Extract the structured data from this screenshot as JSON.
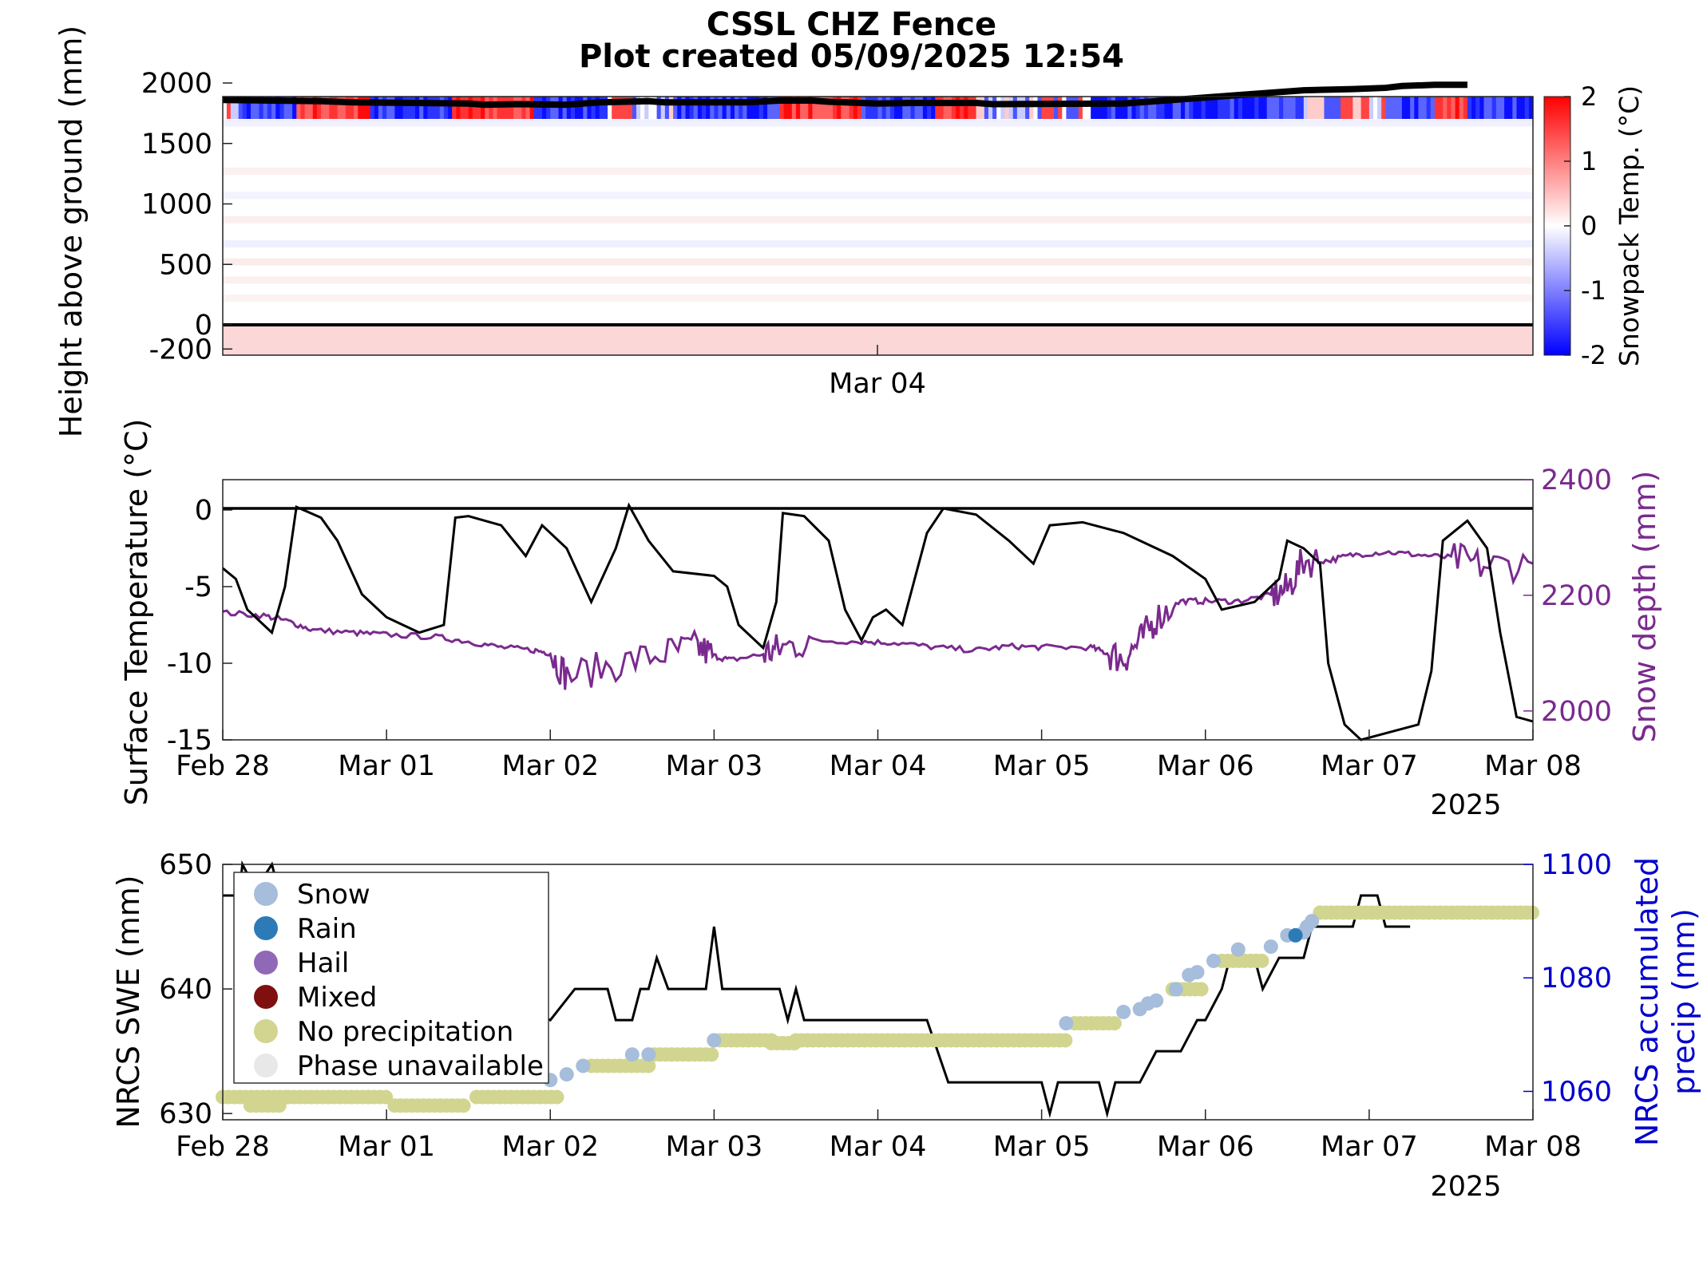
{
  "title_line1": "CSSL CHZ Fence",
  "title_line2": "Plot created 05/09/2025 12:54",
  "chart_data": [
    {
      "type": "heatmap",
      "ylabel": "Height above ground (mm)",
      "yticks": [
        -200,
        0,
        500,
        1000,
        1500,
        2000
      ],
      "xticks": [
        "Mar 04"
      ],
      "colorbar": {
        "label": "Snowpack Temp. (°C)",
        "ticks": [
          -2,
          -1,
          0,
          1,
          2
        ],
        "range": [
          -2,
          2
        ]
      },
      "snow_surface_height": [
        [
          0,
          1860
        ],
        [
          0.3,
          1855
        ],
        [
          0.6,
          1850
        ],
        [
          0.8,
          1840
        ],
        [
          1.5,
          1830
        ],
        [
          1.6,
          1820
        ],
        [
          1.8,
          1825
        ],
        [
          2.1,
          1820
        ],
        [
          2.3,
          1840
        ],
        [
          2.6,
          1850
        ],
        [
          2.7,
          1840
        ],
        [
          3.2,
          1840
        ],
        [
          3.4,
          1855
        ],
        [
          3.6,
          1855
        ],
        [
          3.7,
          1845
        ],
        [
          4.0,
          1830
        ],
        [
          4.2,
          1835
        ],
        [
          4.6,
          1835
        ],
        [
          4.7,
          1825
        ],
        [
          5.5,
          1830
        ],
        [
          5.8,
          1860
        ],
        [
          6.2,
          1900
        ],
        [
          6.6,
          1940
        ],
        [
          6.9,
          1950
        ],
        [
          7.1,
          1960
        ],
        [
          7.2,
          1975
        ],
        [
          7.4,
          1985
        ],
        [
          7.6,
          1985
        ]
      ],
      "ground_level": 0
    },
    {
      "type": "line",
      "ylabel": "Surface Temperature (°C)",
      "ylabel_right": "Snow depth (mm)",
      "ylim": [
        -15,
        2
      ],
      "ylim_right": [
        1950,
        2400
      ],
      "yticks": [
        -15,
        -10,
        -5,
        0
      ],
      "yticks_right": [
        2000,
        2200,
        2400
      ],
      "xticks": [
        "Feb 28",
        "Mar 01",
        "Mar 02",
        "Mar 03",
        "Mar 04",
        "Mar 05",
        "Mar 06",
        "Mar 07",
        "Mar 08"
      ],
      "year_label": "2025",
      "series": [
        {
          "color": "#000000",
          "values": [
            [
              0,
              -3.8
            ],
            [
              0.08,
              -4.5
            ],
            [
              0.15,
              -6.5
            ],
            [
              0.25,
              -7.5
            ],
            [
              0.3,
              -8.0
            ],
            [
              0.38,
              -5.0
            ],
            [
              0.45,
              0.2
            ],
            [
              0.6,
              -0.5
            ],
            [
              0.7,
              -2.0
            ],
            [
              0.85,
              -5.5
            ],
            [
              1.0,
              -7.0
            ],
            [
              1.2,
              -8.0
            ],
            [
              1.35,
              -7.5
            ],
            [
              1.42,
              -0.5
            ],
            [
              1.5,
              -0.4
            ],
            [
              1.7,
              -1.0
            ],
            [
              1.85,
              -3.0
            ],
            [
              1.95,
              -1.0
            ],
            [
              2.1,
              -2.5
            ],
            [
              2.25,
              -6.0
            ],
            [
              2.4,
              -2.5
            ],
            [
              2.48,
              0.3
            ],
            [
              2.6,
              -2.0
            ],
            [
              2.75,
              -4.0
            ],
            [
              3.0,
              -4.3
            ],
            [
              3.08,
              -5.0
            ],
            [
              3.15,
              -7.5
            ],
            [
              3.3,
              -9.0
            ],
            [
              3.38,
              -6.0
            ],
            [
              3.42,
              -0.2
            ],
            [
              3.55,
              -0.4
            ],
            [
              3.7,
              -2.0
            ],
            [
              3.8,
              -6.5
            ],
            [
              3.9,
              -8.5
            ],
            [
              3.97,
              -7.0
            ],
            [
              4.05,
              -6.5
            ],
            [
              4.15,
              -7.5
            ],
            [
              4.3,
              -1.5
            ],
            [
              4.4,
              0.1
            ],
            [
              4.6,
              -0.3
            ],
            [
              4.8,
              -2.0
            ],
            [
              4.95,
              -3.5
            ],
            [
              5.05,
              -1.0
            ],
            [
              5.25,
              -0.8
            ],
            [
              5.5,
              -1.5
            ],
            [
              5.8,
              -3.0
            ],
            [
              6.0,
              -4.5
            ],
            [
              6.1,
              -6.5
            ],
            [
              6.3,
              -6.0
            ],
            [
              6.45,
              -4.5
            ],
            [
              6.5,
              -2.0
            ],
            [
              6.6,
              -2.5
            ],
            [
              6.7,
              -3.5
            ],
            [
              6.75,
              -10.0
            ],
            [
              6.85,
              -14.0
            ],
            [
              6.95,
              -16.0
            ],
            [
              7.3,
              -14.0
            ],
            [
              7.38,
              -10.5
            ],
            [
              7.45,
              -2.0
            ],
            [
              7.6,
              -0.7
            ],
            [
              7.72,
              -2.5
            ],
            [
              7.8,
              -8.0
            ],
            [
              7.9,
              -13.5
            ],
            [
              8.0,
              -13.8
            ]
          ]
        },
        {
          "color": "#7a2a8e",
          "axis": "right",
          "values": [
            [
              0,
              2170
            ],
            [
              0.25,
              2165
            ],
            [
              0.4,
              2155
            ],
            [
              0.55,
              2140
            ],
            [
              0.8,
              2135
            ],
            [
              1.0,
              2132
            ],
            [
              1.3,
              2128
            ],
            [
              1.5,
              2120
            ],
            [
              1.7,
              2110
            ],
            [
              1.9,
              2105
            ],
            [
              2.0,
              2100
            ],
            [
              2.1,
              2060
            ],
            [
              2.4,
              2080
            ],
            [
              2.7,
              2100
            ],
            [
              2.9,
              2110
            ],
            [
              3.0,
              2095
            ],
            [
              3.1,
              2088
            ],
            [
              3.3,
              2098
            ],
            [
              3.4,
              2108
            ],
            [
              3.6,
              2122
            ],
            [
              3.9,
              2120
            ],
            [
              4.1,
              2118
            ],
            [
              4.35,
              2110
            ],
            [
              4.6,
              2105
            ],
            [
              4.8,
              2112
            ],
            [
              5.0,
              2110
            ],
            [
              5.3,
              2110
            ],
            [
              5.4,
              2100
            ],
            [
              5.5,
              2090
            ],
            [
              5.6,
              2120
            ],
            [
              5.7,
              2160
            ],
            [
              5.85,
              2190
            ],
            [
              6.0,
              2190
            ],
            [
              6.2,
              2190
            ],
            [
              6.4,
              2200
            ],
            [
              6.5,
              2210
            ],
            [
              6.6,
              2260
            ],
            [
              6.75,
              2260
            ],
            [
              6.9,
              2270
            ],
            [
              7.1,
              2275
            ],
            [
              7.3,
              2270
            ],
            [
              7.5,
              2265
            ],
            [
              7.7,
              2250
            ],
            [
              8.0,
              2255
            ]
          ]
        }
      ]
    },
    {
      "type": "scatter",
      "ylabel": "NRCS SWE (mm)",
      "ylabel_right": "NRCS accumulated precip (mm)",
      "ylim": [
        629.5,
        650
      ],
      "ylim_right": [
        1055,
        1100
      ],
      "yticks": [
        630,
        640,
        650
      ],
      "yticks_right": [
        1060,
        1080,
        1100
      ],
      "xticks": [
        "Feb 28",
        "Mar 01",
        "Mar 02",
        "Mar 03",
        "Mar 04",
        "Mar 05",
        "Mar 06",
        "Mar 07",
        "Mar 08"
      ],
      "year_label": "2025",
      "legend": [
        {
          "label": "Snow",
          "color": "#a6bddb"
        },
        {
          "label": "Rain",
          "color": "#2c7bb6"
        },
        {
          "label": "Hail",
          "color": "#8f68b8"
        },
        {
          "label": "Mixed",
          "color": "#7f1010"
        },
        {
          "label": "No precipitation",
          "color": "#d2d58f"
        },
        {
          "label": "Phase unavailable",
          "color": "#e8e8e8"
        }
      ],
      "legend_location": "top-left",
      "swe_series": [
        [
          0,
          647.5
        ],
        [
          0.1,
          647.5
        ],
        [
          0.12,
          650
        ],
        [
          0.2,
          648
        ],
        [
          0.3,
          650
        ],
        [
          0.35,
          647.5
        ],
        [
          2.0,
          637.5
        ],
        [
          2.15,
          640
        ],
        [
          2.35,
          640
        ],
        [
          2.4,
          637.5
        ],
        [
          2.5,
          637.5
        ],
        [
          2.55,
          640
        ],
        [
          2.6,
          640
        ],
        [
          2.65,
          642.5
        ],
        [
          2.72,
          640
        ],
        [
          2.95,
          640
        ],
        [
          3.0,
          645
        ],
        [
          3.05,
          640
        ],
        [
          3.4,
          640
        ],
        [
          3.45,
          637.5
        ],
        [
          3.5,
          640
        ],
        [
          3.55,
          637.5
        ],
        [
          4.3,
          637.5
        ],
        [
          4.43,
          632.5
        ],
        [
          4.5,
          632.5
        ],
        [
          5.0,
          632.5
        ],
        [
          5.05,
          630
        ],
        [
          5.1,
          632.5
        ],
        [
          5.35,
          632.5
        ],
        [
          5.4,
          630
        ],
        [
          5.45,
          632.5
        ],
        [
          5.6,
          632.5
        ],
        [
          5.7,
          635
        ],
        [
          5.85,
          635
        ],
        [
          5.95,
          637.5
        ],
        [
          6.0,
          637.5
        ],
        [
          6.1,
          640
        ],
        [
          6.15,
          642.5
        ],
        [
          6.3,
          642.5
        ],
        [
          6.35,
          640
        ],
        [
          6.45,
          642.5
        ],
        [
          6.6,
          642.5
        ],
        [
          6.65,
          645
        ],
        [
          6.9,
          645
        ],
        [
          6.95,
          647.5
        ],
        [
          7.05,
          647.5
        ],
        [
          7.1,
          645
        ],
        [
          7.25,
          645
        ]
      ],
      "precip_points": {
        "snow": [
          [
            2.0,
            1062.0
          ],
          [
            2.1,
            1063.0
          ],
          [
            2.2,
            1064.5
          ],
          [
            2.5,
            1066.5
          ],
          [
            2.6,
            1066.5
          ],
          [
            3.0,
            1069.0
          ],
          [
            5.15,
            1072.0
          ],
          [
            5.5,
            1074.0
          ],
          [
            5.6,
            1074.5
          ],
          [
            5.65,
            1075.5
          ],
          [
            5.7,
            1076.0
          ],
          [
            5.82,
            1078.0
          ],
          [
            5.9,
            1080.5
          ],
          [
            5.95,
            1081.0
          ],
          [
            6.05,
            1083.0
          ],
          [
            6.2,
            1085.0
          ],
          [
            6.4,
            1085.5
          ],
          [
            6.5,
            1087.5
          ],
          [
            6.6,
            1088.0
          ],
          [
            6.62,
            1089.0
          ],
          [
            6.65,
            1090.0
          ]
        ],
        "rain": [
          [
            6.55,
            1087.5
          ]
        ],
        "no_precip_levels": [
          [
            0.0,
            0.4,
            1059.0
          ],
          [
            0.17,
            0.35,
            1057.5
          ],
          [
            0.4,
            1.0,
            1059.0
          ],
          [
            1.05,
            1.5,
            1057.5
          ],
          [
            1.55,
            2.05,
            1059.0
          ],
          [
            2.25,
            2.6,
            1064.5
          ],
          [
            2.6,
            3.0,
            1066.5
          ],
          [
            3.0,
            3.35,
            1069.0
          ],
          [
            3.35,
            3.5,
            1068.5
          ],
          [
            3.5,
            5.15,
            1069.0
          ],
          [
            5.2,
            5.45,
            1072.0
          ],
          [
            5.8,
            6.0,
            1078.0
          ],
          [
            6.1,
            6.35,
            1083.0
          ],
          [
            6.7,
            8.0,
            1091.5
          ]
        ]
      }
    }
  ]
}
